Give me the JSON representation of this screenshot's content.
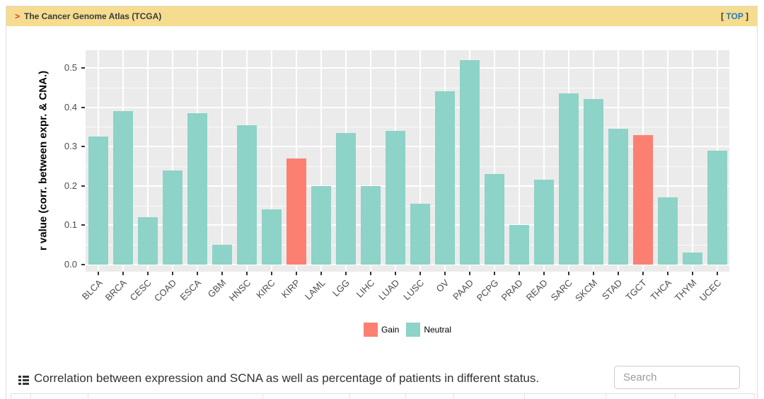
{
  "header": {
    "arrow": ">",
    "title": "The Cancer Genome Atlas (TCGA)",
    "top_link": {
      "open_bracket": "[",
      "label": "TOP",
      "close_bracket": "]"
    }
  },
  "chart_data": {
    "type": "bar",
    "title": "",
    "xlabel": "",
    "ylabel": "r value (corr. between expr. & CNA.)",
    "ylim": [
      0,
      0.55
    ],
    "yticks": [
      "0.0",
      "0.1",
      "0.2",
      "0.3",
      "0.4",
      "0.5"
    ],
    "grid": true,
    "legend_position": "bottom",
    "panel_bg": "#EBEBEB",
    "grid_color": "#FFFFFF",
    "categories": [
      "BLCA",
      "BRCA",
      "CESC",
      "COAD",
      "ESCA",
      "GBM",
      "HNSC",
      "KIRC",
      "KIRP",
      "LAML",
      "LGG",
      "LIHC",
      "LUAD",
      "LUSC",
      "OV",
      "PAAD",
      "PCPG",
      "PRAD",
      "READ",
      "SARC",
      "SKCM",
      "STAD",
      "TGCT",
      "THCA",
      "THYM",
      "UCEC"
    ],
    "values": [
      0.325,
      0.39,
      0.12,
      0.24,
      0.385,
      0.05,
      0.355,
      0.14,
      0.27,
      0.2,
      0.335,
      0.2,
      0.34,
      0.155,
      0.44,
      0.52,
      0.23,
      0.1,
      0.215,
      0.435,
      0.42,
      0.345,
      0.33,
      0.17,
      0.03,
      0.29
    ],
    "status": [
      "Neutral",
      "Neutral",
      "Neutral",
      "Neutral",
      "Neutral",
      "Neutral",
      "Neutral",
      "Neutral",
      "Gain",
      "Neutral",
      "Neutral",
      "Neutral",
      "Neutral",
      "Neutral",
      "Neutral",
      "Neutral",
      "Neutral",
      "Neutral",
      "Neutral",
      "Neutral",
      "Neutral",
      "Neutral",
      "Gain",
      "Neutral",
      "Neutral",
      "Neutral"
    ],
    "colors": {
      "Gain": "#FB8072",
      "Neutral": "#8DD3C7"
    },
    "legend": [
      {
        "label": "Gain",
        "status": "Gain"
      },
      {
        "label": "Neutral",
        "status": "Neutral"
      }
    ]
  },
  "caption": {
    "icon": "list-icon",
    "text": "Correlation between expression and SCNA as well as percentage of patients in different status."
  },
  "search": {
    "placeholder": "Search"
  },
  "theme": {
    "header_bg": "#F5DC8F",
    "header_text": "#3A3A3A",
    "arrow_color": "#E8382B",
    "link_color": "#2A7AB9",
    "axis_text": "#4D4D4D"
  }
}
